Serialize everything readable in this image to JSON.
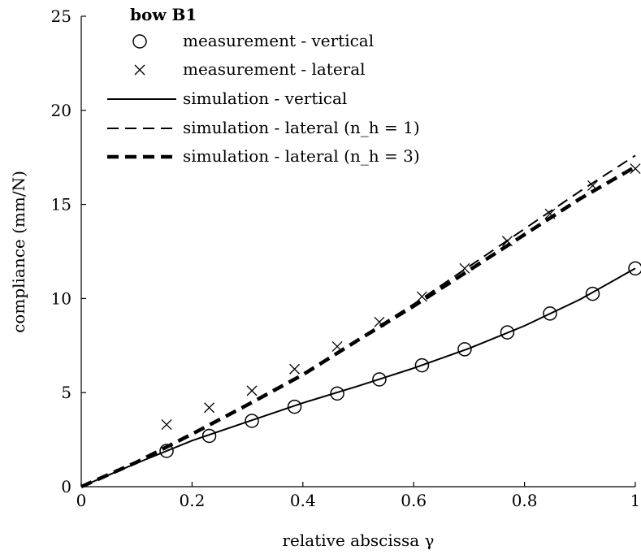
{
  "chart_data": {
    "type": "line",
    "title": "",
    "xlabel": "relative abscissa γ",
    "ylabel": "compliance (mm/N)",
    "xlim": [
      0,
      1
    ],
    "ylim": [
      0,
      25
    ],
    "xticks": [
      0,
      0.2,
      0.4,
      0.6,
      0.8,
      1
    ],
    "xtick_labels": [
      "0",
      "0.2",
      "0.4",
      "0.6",
      "0.8",
      "1"
    ],
    "yticks": [
      0,
      5,
      10,
      15,
      20,
      25
    ],
    "ytick_labels": [
      "0",
      "5",
      "10",
      "15",
      "20",
      "25"
    ],
    "grid": false,
    "legend": {
      "title": "bow B1",
      "placement": "top-left",
      "entries": [
        "measurement - vertical",
        "measurement - lateral",
        "simulation - vertical",
        "simulation - lateral (n_h = 1)",
        "simulation - lateral (n_h = 3)"
      ]
    },
    "series": [
      {
        "name": "measurement - vertical",
        "kind": "marker-circle",
        "x": [
          0.154,
          0.231,
          0.308,
          0.385,
          0.462,
          0.538,
          0.615,
          0.692,
          0.769,
          0.846,
          0.923,
          1.0
        ],
        "y": [
          1.9,
          2.7,
          3.5,
          4.25,
          4.95,
          5.7,
          6.45,
          7.3,
          8.2,
          9.2,
          10.25,
          11.6
        ]
      },
      {
        "name": "measurement - lateral",
        "kind": "marker-cross",
        "x": [
          0.154,
          0.231,
          0.308,
          0.385,
          0.462,
          0.538,
          0.615,
          0.692,
          0.769,
          0.846,
          0.923,
          1.0
        ],
        "y": [
          3.3,
          4.2,
          5.1,
          6.25,
          7.45,
          8.75,
          10.1,
          11.6,
          13.05,
          14.5,
          16.0,
          16.9
        ]
      },
      {
        "name": "simulation - vertical",
        "kind": "line-solid",
        "x": [
          0,
          0.1,
          0.2,
          0.3,
          0.4,
          0.5,
          0.6,
          0.7,
          0.8,
          0.9,
          1.0
        ],
        "y": [
          0,
          1.25,
          2.45,
          3.45,
          4.45,
          5.35,
          6.3,
          7.35,
          8.55,
          9.95,
          11.6
        ]
      },
      {
        "name": "simulation - lateral (n_h = 1)",
        "kind": "line-dashed",
        "x": [
          0,
          0.1,
          0.2,
          0.3,
          0.4,
          0.5,
          0.6,
          0.7,
          0.8,
          0.9,
          1.0
        ],
        "y": [
          0,
          1.35,
          2.85,
          4.4,
          6.0,
          7.85,
          9.7,
          11.7,
          13.7,
          15.7,
          17.6
        ]
      },
      {
        "name": "simulation - lateral (n_h = 3)",
        "kind": "line-dashed-thick",
        "x": [
          0,
          0.1,
          0.2,
          0.3,
          0.4,
          0.5,
          0.6,
          0.7,
          0.8,
          0.9,
          1.0
        ],
        "y": [
          0,
          1.3,
          2.8,
          4.35,
          5.95,
          7.8,
          9.6,
          11.5,
          13.4,
          15.3,
          17.0
        ]
      }
    ]
  }
}
